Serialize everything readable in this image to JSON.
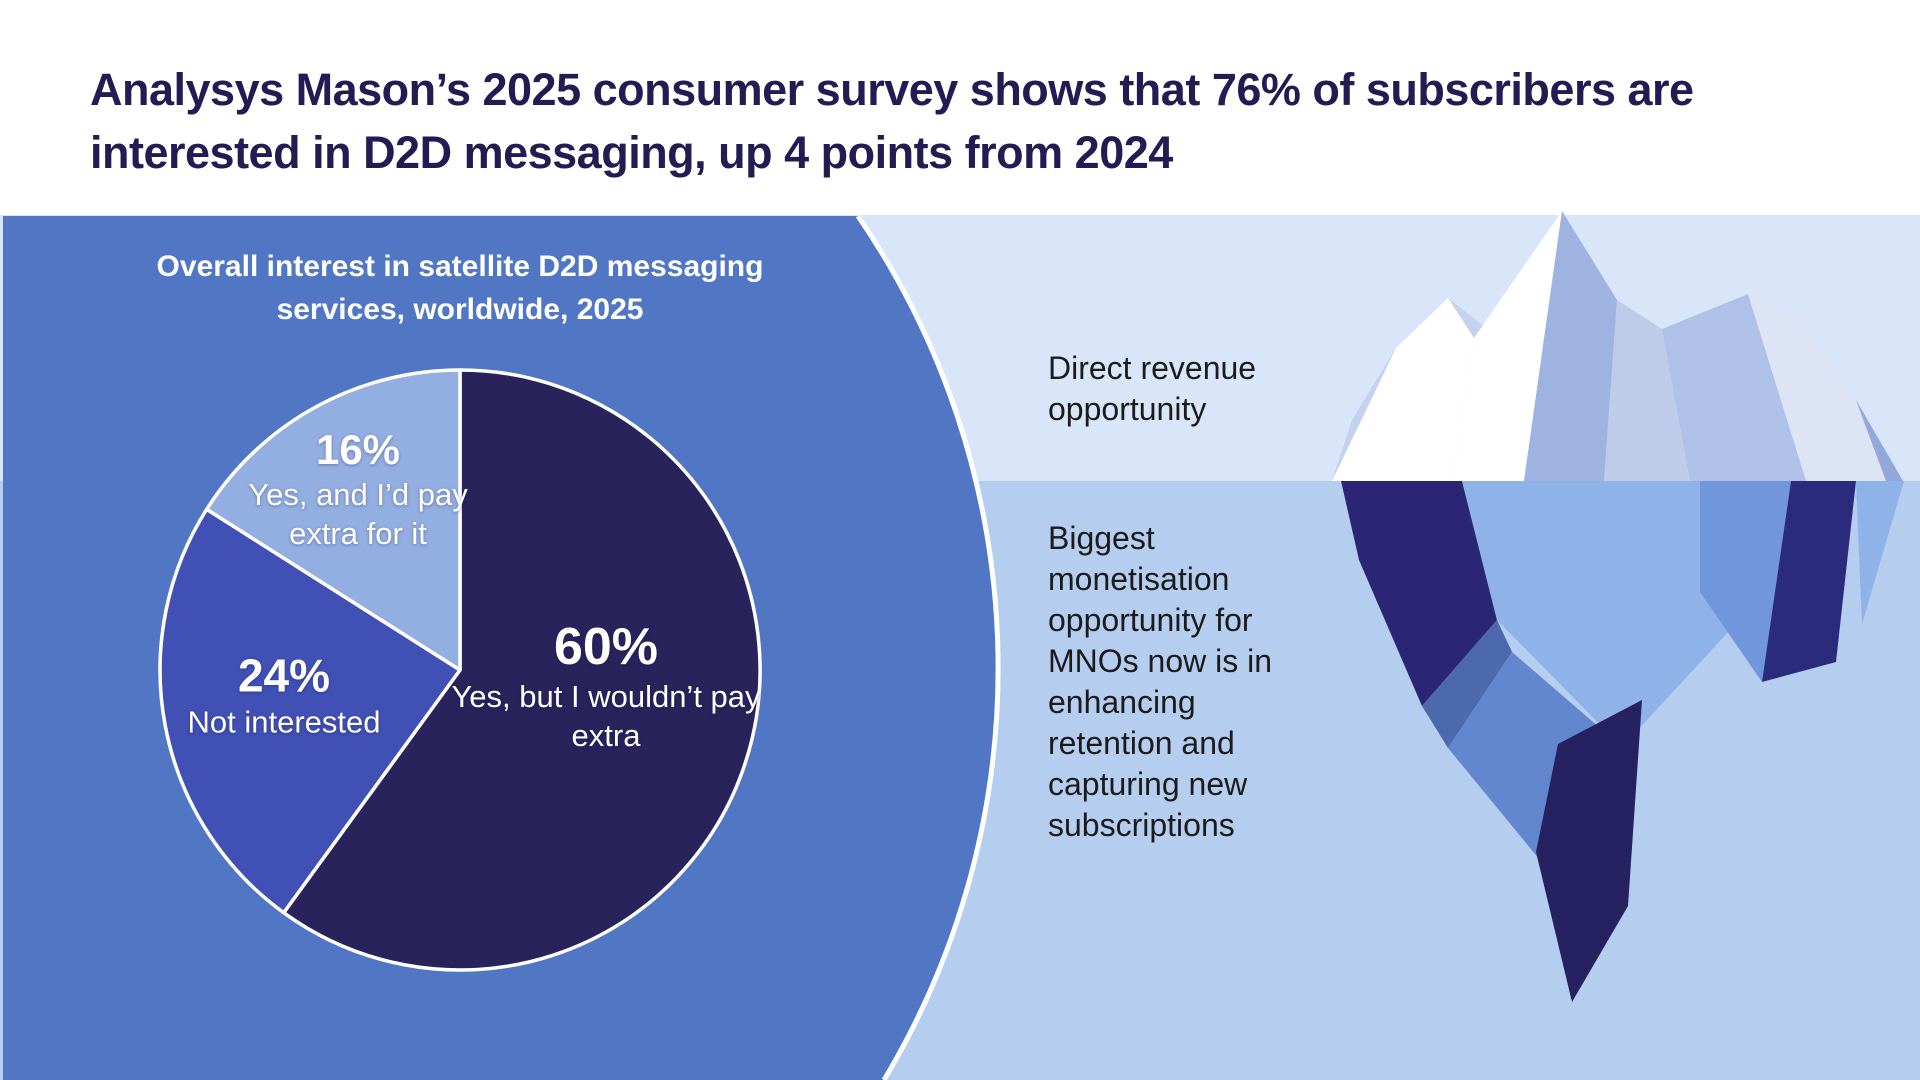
{
  "headline": {
    "line1": "Analysys Mason’s 2025 consumer survey shows that 76% of subscribers are",
    "line2": "interested in D2D messaging, up 4 points from 2024"
  },
  "chart_data": {
    "type": "pie",
    "title_line1": "Overall interest in satellite D2D messaging",
    "title_line2": "services, worldwide, 2025",
    "title": "Overall interest in satellite D2D messaging services, worldwide, 2025",
    "start_angle_deg": 0,
    "direction": "clockwise",
    "slices": [
      {
        "label": "Yes, but I wouldn’t pay extra",
        "value": 60,
        "color": "#29235C"
      },
      {
        "label": "Not interested",
        "value": 24,
        "color": "#4150B5"
      },
      {
        "label": "Yes, and I’d pay extra for it",
        "value": 16,
        "color": "#93AEE1"
      }
    ]
  },
  "annotations": {
    "direct_revenue": "Direct revenue opportunity",
    "retention": "Biggest monetisation opportunity for MNOs now is in enhancing retention and capturing new subscriptions"
  },
  "palette": {
    "headline_text": "#221C53",
    "panel_background": "#5176C4",
    "band_above_water": "#D9E6F9",
    "band_below_water": "#B5CDEF",
    "outline": "#FFFFFF",
    "iceberg_above": [
      "#FFFFFF",
      "#C3D2EE",
      "#BECCEA",
      "#AFC1E7",
      "#9FB3E0",
      "#DCE4F5",
      "#93A8D9"
    ],
    "iceberg_below": [
      "#8FB2E8",
      "#7296DC",
      "#6287CF",
      "#4C69AE",
      "#2B2B7E",
      "#2A2574",
      "#262161"
    ]
  }
}
